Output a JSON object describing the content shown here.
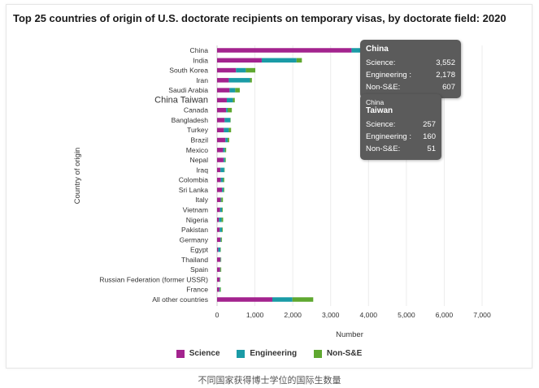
{
  "chart_data": {
    "type": "bar",
    "orientation": "horizontal",
    "stacked": true,
    "title": "Top 25 countries of origin of U.S. doctorate recipients on temporary visas, by doctorate field: 2020",
    "xlabel": "Number",
    "ylabel": "Country of origin",
    "xlim": [
      0,
      7000
    ],
    "xticks": [
      "0",
      "1,000",
      "2,000",
      "3,000",
      "4,000",
      "5,000",
      "6,000",
      "7,000"
    ],
    "grid": true,
    "legend_position": "bottom",
    "categories": [
      "China",
      "India",
      "South Korea",
      "Iran",
      "Saudi Arabia",
      "China Taiwan",
      "Canada",
      "Bangladesh",
      "Turkey",
      "Brazil",
      "Mexico",
      "Nepal",
      "Iraq",
      "Colombia",
      "Sri Lanka",
      "Italy",
      "Vietnam",
      "Nigeria",
      "Pakistan",
      "Germany",
      "Egypt",
      "Thailand",
      "Spain",
      "Russian Federation (former USSR)",
      "France",
      "All other countries"
    ],
    "series": [
      {
        "name": "Science",
        "color": "#a3238e",
        "values": [
          3552,
          1180,
          500,
          310,
          330,
          257,
          240,
          200,
          180,
          220,
          160,
          170,
          90,
          100,
          130,
          95,
          80,
          50,
          70,
          90,
          30,
          90,
          80,
          70,
          60,
          1460
        ]
      },
      {
        "name": "Engineering",
        "color": "#1a9ba6",
        "values": [
          2178,
          920,
          260,
          560,
          150,
          160,
          40,
          150,
          130,
          60,
          50,
          40,
          100,
          60,
          40,
          20,
          50,
          70,
          60,
          20,
          60,
          10,
          10,
          10,
          20,
          530
        ]
      },
      {
        "name": "Non-S&E",
        "color": "#5fa830",
        "values": [
          607,
          140,
          250,
          50,
          120,
          51,
          110,
          10,
          60,
          40,
          30,
          20,
          10,
          30,
          20,
          40,
          20,
          40,
          20,
          20,
          10,
          10,
          20,
          10,
          20,
          550
        ]
      }
    ]
  },
  "tooltips": [
    {
      "title": "China",
      "rows": [
        {
          "label": "Science:",
          "value": "3,552"
        },
        {
          "label": "Engineering :",
          "value": "2,178"
        },
        {
          "label": "Non-S&E:",
          "value": "607"
        }
      ]
    },
    {
      "title_line1": "China",
      "title_line2": "Taiwan",
      "rows": [
        {
          "label": "Science:",
          "value": "257"
        },
        {
          "label": "Engineering :",
          "value": "160"
        },
        {
          "label": "Non-S&E:",
          "value": "51"
        }
      ]
    }
  ],
  "caption": "不同国家获得博士学位的国际生数量"
}
